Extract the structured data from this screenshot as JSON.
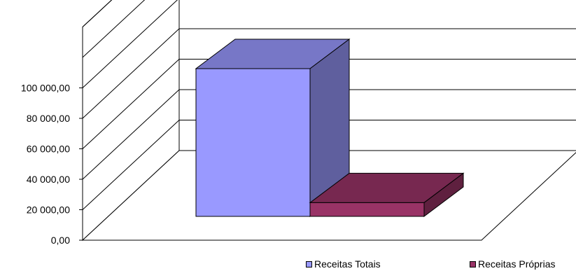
{
  "chart_data": {
    "type": "bar",
    "title": "",
    "xlabel": "",
    "ylabel": "",
    "ylim": [
      0,
      140000
    ],
    "y_ticks": [
      "0,00",
      "20 000,00",
      "40 000,00",
      "60 000,00",
      "80 000,00",
      "100 000,00"
    ],
    "y_tick_values": [
      0,
      20000,
      40000,
      60000,
      80000,
      100000
    ],
    "grid": true,
    "three_d": true,
    "legend_position": "bottom-right",
    "series": [
      {
        "name": "Receitas Totais",
        "values": [
          97000
        ],
        "color": "#9999ff"
      },
      {
        "name": "Receitas Próprias",
        "values": [
          9000
        ],
        "color": "#993366"
      }
    ]
  },
  "legend": [
    {
      "label": "Receitas Totais",
      "color": "#9999ff"
    },
    {
      "label": "Receitas Próprias",
      "color": "#993366"
    }
  ]
}
